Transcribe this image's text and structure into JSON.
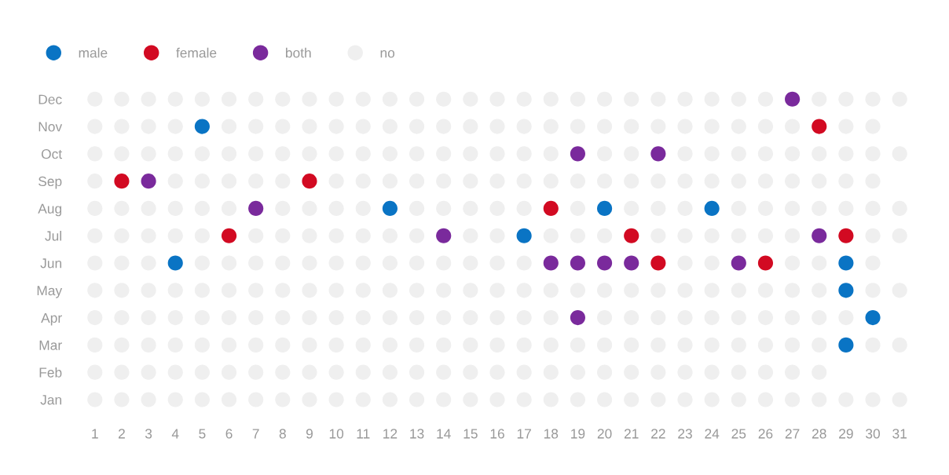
{
  "chart_data": {
    "type": "scatter",
    "orientation": "horizontal",
    "categories": [
      "Dec",
      "Nov",
      "Oct",
      "Sep",
      "Aug",
      "Jul",
      "Jun",
      "May",
      "Apr",
      "Mar",
      "Feb",
      "Jan"
    ],
    "xlim": [
      1,
      31
    ],
    "xticks": [
      1,
      2,
      3,
      4,
      5,
      6,
      7,
      8,
      9,
      10,
      11,
      12,
      13,
      14,
      15,
      16,
      17,
      18,
      19,
      20,
      21,
      22,
      23,
      24,
      25,
      26,
      27,
      28,
      29,
      30,
      31
    ],
    "grid": false,
    "legend": "top left",
    "marker": "circle",
    "series": [
      {
        "name": "male",
        "color": "#0a74c4",
        "x": [
          "Mar",
          "Apr",
          "May",
          "Jun",
          "Jun",
          "Jul",
          "Aug",
          "Aug",
          "Aug",
          "Nov"
        ],
        "values": [
          29,
          30,
          29,
          4,
          29,
          17,
          12,
          20,
          24,
          5
        ]
      },
      {
        "name": "female",
        "color": "#d20a22",
        "x": [
          "Jun",
          "Jun",
          "Jul",
          "Jul",
          "Jul",
          "Aug",
          "Sep",
          "Sep",
          "Nov"
        ],
        "values": [
          22,
          26,
          6,
          21,
          29,
          18,
          2,
          9,
          28
        ]
      },
      {
        "name": "both",
        "color": "#7a2a9c",
        "x": [
          "Apr",
          "Jun",
          "Jun",
          "Jun",
          "Jun",
          "Jun",
          "Jul",
          "Jul",
          "Aug",
          "Sep",
          "Oct",
          "Oct",
          "Dec"
        ],
        "values": [
          19,
          18,
          19,
          20,
          21,
          25,
          14,
          28,
          7,
          3,
          19,
          22,
          27
        ]
      },
      {
        "name": "no",
        "color": "#efefef",
        "values": [
          1,
          2,
          3,
          4,
          5,
          6,
          7,
          8,
          9,
          10,
          11,
          12,
          13,
          14,
          15,
          16,
          17,
          18,
          19,
          20,
          21,
          22,
          23,
          24,
          25,
          26,
          27,
          28,
          29,
          30,
          31,
          1,
          2,
          3,
          4,
          5,
          6,
          7,
          8,
          9,
          10,
          11,
          12,
          13,
          14,
          15,
          16,
          17,
          18,
          19,
          20,
          21,
          22,
          23,
          24,
          25,
          26,
          27,
          28,
          1,
          2,
          3,
          4,
          5,
          6,
          7,
          8,
          9,
          10,
          11,
          12,
          13,
          14,
          15,
          16,
          17,
          18,
          19,
          20,
          21,
          22,
          23,
          24,
          25,
          26,
          27,
          28,
          30,
          31,
          1,
          2,
          3,
          4,
          5,
          6,
          7,
          8,
          9,
          10,
          11,
          12,
          13,
          14,
          15,
          16,
          17,
          18,
          20,
          21,
          22,
          23,
          24,
          25,
          26,
          27,
          28,
          29,
          1,
          2,
          3,
          4,
          5,
          6,
          7,
          8,
          9,
          10,
          11,
          12,
          13,
          14,
          15,
          16,
          17,
          18,
          19,
          20,
          21,
          22,
          23,
          24,
          25,
          26,
          27,
          28,
          30,
          31,
          1,
          2,
          3,
          5,
          6,
          7,
          8,
          9,
          10,
          11,
          12,
          13,
          14,
          15,
          16,
          17,
          23,
          24,
          27,
          28,
          30,
          1,
          2,
          3,
          4,
          5,
          7,
          8,
          9,
          10,
          11,
          12,
          13,
          15,
          16,
          18,
          19,
          20,
          22,
          23,
          24,
          25,
          26,
          27,
          30,
          31,
          1,
          2,
          3,
          4,
          5,
          6,
          8,
          9,
          10,
          11,
          13,
          14,
          15,
          16,
          17,
          19,
          21,
          22,
          23,
          25,
          26,
          27,
          28,
          29,
          30,
          31,
          1,
          4,
          5,
          6,
          7,
          8,
          10,
          11,
          12,
          13,
          14,
          15,
          16,
          17,
          18,
          19,
          20,
          21,
          22,
          23,
          24,
          25,
          26,
          27,
          28,
          29,
          30,
          1,
          2,
          3,
          4,
          5,
          6,
          7,
          8,
          9,
          10,
          11,
          12,
          13,
          14,
          15,
          16,
          17,
          18,
          20,
          21,
          23,
          24,
          25,
          26,
          27,
          28,
          29,
          30,
          31,
          1,
          2,
          3,
          4,
          6,
          7,
          8,
          9,
          10,
          11,
          12,
          13,
          14,
          15,
          16,
          17,
          18,
          19,
          20,
          21,
          22,
          23,
          24,
          25,
          26,
          27,
          29,
          30,
          1,
          2,
          3,
          4,
          5,
          6,
          7,
          8,
          9,
          10,
          11,
          12,
          13,
          14,
          15,
          16,
          17,
          18,
          19,
          20,
          21,
          22,
          23,
          24,
          25,
          26,
          28,
          29,
          30,
          31
        ],
        "x": [
          "Jan",
          "Jan",
          "Jan",
          "Jan",
          "Jan",
          "Jan",
          "Jan",
          "Jan",
          "Jan",
          "Jan",
          "Jan",
          "Jan",
          "Jan",
          "Jan",
          "Jan",
          "Jan",
          "Jan",
          "Jan",
          "Jan",
          "Jan",
          "Jan",
          "Jan",
          "Jan",
          "Jan",
          "Jan",
          "Jan",
          "Jan",
          "Jan",
          "Jan",
          "Jan",
          "Jan",
          "Feb",
          "Feb",
          "Feb",
          "Feb",
          "Feb",
          "Feb",
          "Feb",
          "Feb",
          "Feb",
          "Feb",
          "Feb",
          "Feb",
          "Feb",
          "Feb",
          "Feb",
          "Feb",
          "Feb",
          "Feb",
          "Feb",
          "Feb",
          "Feb",
          "Feb",
          "Feb",
          "Feb",
          "Feb",
          "Feb",
          "Feb",
          "Feb",
          "Mar",
          "Mar",
          "Mar",
          "Mar",
          "Mar",
          "Mar",
          "Mar",
          "Mar",
          "Mar",
          "Mar",
          "Mar",
          "Mar",
          "Mar",
          "Mar",
          "Mar",
          "Mar",
          "Mar",
          "Mar",
          "Mar",
          "Mar",
          "Mar",
          "Mar",
          "Mar",
          "Mar",
          "Mar",
          "Mar",
          "Mar",
          "Mar",
          "Mar",
          "Mar",
          "Apr",
          "Apr",
          "Apr",
          "Apr",
          "Apr",
          "Apr",
          "Apr",
          "Apr",
          "Apr",
          "Apr",
          "Apr",
          "Apr",
          "Apr",
          "Apr",
          "Apr",
          "Apr",
          "Apr",
          "Apr",
          "Apr",
          "Apr",
          "Apr",
          "Apr",
          "Apr",
          "Apr",
          "Apr",
          "Apr",
          "Apr",
          "Apr",
          "May",
          "May",
          "May",
          "May",
          "May",
          "May",
          "May",
          "May",
          "May",
          "May",
          "May",
          "May",
          "May",
          "May",
          "May",
          "May",
          "May",
          "May",
          "May",
          "May",
          "May",
          "May",
          "May",
          "May",
          "May",
          "May",
          "May",
          "May",
          "May",
          "May",
          "Jun",
          "Jun",
          "Jun",
          "Jun",
          "Jun",
          "Jun",
          "Jun",
          "Jun",
          "Jun",
          "Jun",
          "Jun",
          "Jun",
          "Jun",
          "Jun",
          "Jun",
          "Jun",
          "Jun",
          "Jun",
          "Jun",
          "Jun",
          "Jun",
          "Jul",
          "Jul",
          "Jul",
          "Jul",
          "Jul",
          "Jul",
          "Jul",
          "Jul",
          "Jul",
          "Jul",
          "Jul",
          "Jul",
          "Jul",
          "Jul",
          "Jul",
          "Jul",
          "Jul",
          "Jul",
          "Jul",
          "Jul",
          "Jul",
          "Jul",
          "Jul",
          "Jul",
          "Jul",
          "Aug",
          "Aug",
          "Aug",
          "Aug",
          "Aug",
          "Aug",
          "Aug",
          "Aug",
          "Aug",
          "Aug",
          "Aug",
          "Aug",
          "Aug",
          "Aug",
          "Aug",
          "Aug",
          "Aug",
          "Aug",
          "Aug",
          "Aug",
          "Aug",
          "Aug",
          "Aug",
          "Aug",
          "Aug",
          "Aug",
          "Sep",
          "Sep",
          "Sep",
          "Sep",
          "Sep",
          "Sep",
          "Sep",
          "Sep",
          "Sep",
          "Sep",
          "Sep",
          "Sep",
          "Sep",
          "Sep",
          "Sep",
          "Sep",
          "Sep",
          "Sep",
          "Sep",
          "Sep",
          "Sep",
          "Sep",
          "Sep",
          "Sep",
          "Sep",
          "Sep",
          "Sep",
          "Oct",
          "Oct",
          "Oct",
          "Oct",
          "Oct",
          "Oct",
          "Oct",
          "Oct",
          "Oct",
          "Oct",
          "Oct",
          "Oct",
          "Oct",
          "Oct",
          "Oct",
          "Oct",
          "Oct",
          "Oct",
          "Oct",
          "Oct",
          "Oct",
          "Oct",
          "Oct",
          "Oct",
          "Oct",
          "Oct",
          "Oct",
          "Oct",
          "Oct",
          "Nov",
          "Nov",
          "Nov",
          "Nov",
          "Nov",
          "Nov",
          "Nov",
          "Nov",
          "Nov",
          "Nov",
          "Nov",
          "Nov",
          "Nov",
          "Nov",
          "Nov",
          "Nov",
          "Nov",
          "Nov",
          "Nov",
          "Nov",
          "Nov",
          "Nov",
          "Nov",
          "Nov",
          "Nov",
          "Nov",
          "Nov",
          "Nov",
          "Dec",
          "Dec",
          "Dec",
          "Dec",
          "Dec",
          "Dec",
          "Dec",
          "Dec",
          "Dec",
          "Dec",
          "Dec",
          "Dec",
          "Dec",
          "Dec",
          "Dec",
          "Dec",
          "Dec",
          "Dec",
          "Dec",
          "Dec",
          "Dec",
          "Dec",
          "Dec",
          "Dec",
          "Dec",
          "Dec",
          "Dec",
          "Dec",
          "Dec",
          "Dec"
        ]
      }
    ]
  }
}
